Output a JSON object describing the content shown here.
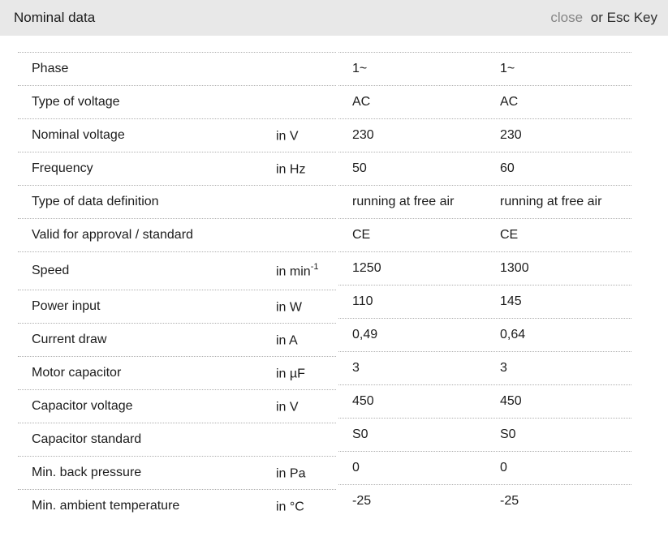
{
  "header": {
    "title": "Nominal data",
    "close_label": "close",
    "close_suffix": "or Esc Key"
  },
  "colors": {
    "header_background": "#e8e8e8",
    "close_link": "#858585",
    "divider_dotted": "#b0b0b0",
    "text": "#1c1c1c"
  },
  "table": {
    "rows": [
      {
        "label": "Phase",
        "unit": "",
        "unit_sup": "",
        "v1": "1~",
        "v2": "1~"
      },
      {
        "label": "Type of voltage",
        "unit": "",
        "unit_sup": "",
        "v1": "AC",
        "v2": "AC"
      },
      {
        "label": "Nominal voltage",
        "unit": "in V",
        "unit_sup": "",
        "v1": "230",
        "v2": "230"
      },
      {
        "label": "Frequency",
        "unit": "in Hz",
        "unit_sup": "",
        "v1": "50",
        "v2": "60"
      },
      {
        "label": "Type of data definition",
        "unit": "",
        "unit_sup": "",
        "v1": "running at free air",
        "v2": "running at free air"
      },
      {
        "label": "Valid for approval / standard",
        "unit": "",
        "unit_sup": "",
        "v1": "CE",
        "v2": "CE"
      },
      {
        "label": "Speed",
        "unit": "in min",
        "unit_sup": "-1",
        "v1": "1250",
        "v2": "1300"
      },
      {
        "label": "Power input",
        "unit": "in W",
        "unit_sup": "",
        "v1": "110",
        "v2": "145"
      },
      {
        "label": "Current draw",
        "unit": "in A",
        "unit_sup": "",
        "v1": "0,49",
        "v2": "0,64"
      },
      {
        "label": "Motor capacitor",
        "unit": "in µF",
        "unit_sup": "",
        "v1": "3",
        "v2": "3"
      },
      {
        "label": "Capacitor voltage",
        "unit": "in V",
        "unit_sup": "",
        "v1": "450",
        "v2": "450"
      },
      {
        "label": "Capacitor standard",
        "unit": "",
        "unit_sup": "",
        "v1": "S0",
        "v2": "S0"
      },
      {
        "label": "Min. back pressure",
        "unit": "in Pa",
        "unit_sup": "",
        "v1": "0",
        "v2": "0"
      },
      {
        "label": "Min. ambient temperature",
        "unit": "in °C",
        "unit_sup": "",
        "v1": "-25",
        "v2": "-25"
      }
    ],
    "tall_row_index": 6
  }
}
